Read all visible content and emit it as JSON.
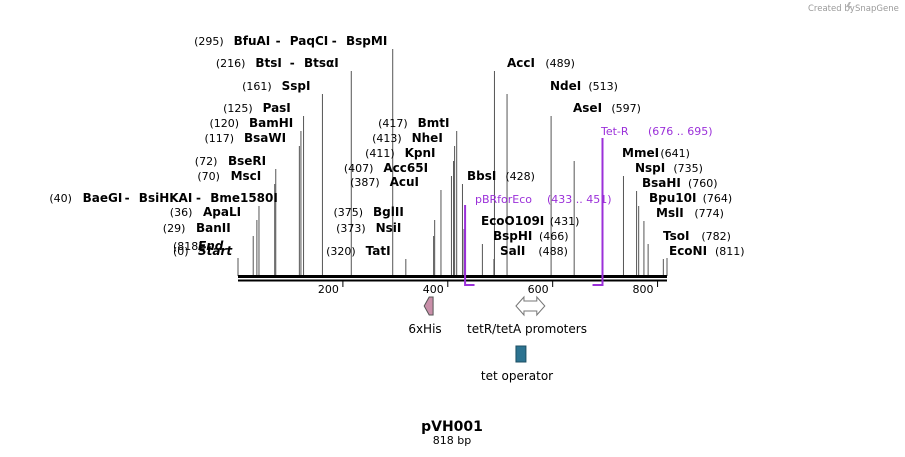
{
  "brand": {
    "created_by": "Created by",
    "name": "SnapGene"
  },
  "plasmid": {
    "name": "pVH001",
    "length_label": "818 bp"
  },
  "axis": {
    "start": 0,
    "end": 818,
    "ticks": [
      200,
      400,
      600,
      800
    ]
  },
  "enzymes": [
    {
      "names": [
        "Start"
      ],
      "pos_label": "(0)",
      "pos": 0,
      "italic": true
    },
    {
      "names": [
        "BanII"
      ],
      "pos_label": "(29)",
      "pos": 29
    },
    {
      "names": [
        "ApaLI"
      ],
      "pos_label": "(36)",
      "pos": 36
    },
    {
      "names": [
        "BaeGI",
        "BsiHKAI",
        "Bme1580I"
      ],
      "pos_label": "(40)",
      "pos": 40
    },
    {
      "names": [
        "MscI"
      ],
      "pos_label": "(70)",
      "pos": 70
    },
    {
      "names": [
        "BseRI"
      ],
      "pos_label": "(72)",
      "pos": 72
    },
    {
      "names": [
        "BsaWI"
      ],
      "pos_label": "(117)",
      "pos": 117
    },
    {
      "names": [
        "BamHI"
      ],
      "pos_label": "(120)",
      "pos": 120
    },
    {
      "names": [
        "PasI"
      ],
      "pos_label": "(125)",
      "pos": 125
    },
    {
      "names": [
        "SspI"
      ],
      "pos_label": "(161)",
      "pos": 161
    },
    {
      "names": [
        "BtsI",
        "BtsαI"
      ],
      "pos_label": "(216)",
      "pos": 216
    },
    {
      "names": [
        "BfuAI",
        "PaqCI",
        "BspMI"
      ],
      "pos_label": "(295)",
      "pos": 295
    },
    {
      "names": [
        "TatI"
      ],
      "pos_label": "(320)",
      "pos": 320
    },
    {
      "names": [
        "NsiI"
      ],
      "pos_label": "(373)",
      "pos": 373
    },
    {
      "names": [
        "BglII"
      ],
      "pos_label": "(375)",
      "pos": 375
    },
    {
      "names": [
        "AcuI"
      ],
      "pos_label": "(387)",
      "pos": 387
    },
    {
      "names": [
        "Acc65I"
      ],
      "pos_label": "(407)",
      "pos": 407
    },
    {
      "names": [
        "KpnI"
      ],
      "pos_label": "(411)",
      "pos": 411
    },
    {
      "names": [
        "NheI"
      ],
      "pos_label": "(413)",
      "pos": 413
    },
    {
      "names": [
        "BmtI"
      ],
      "pos_label": "(417)",
      "pos": 417
    },
    {
      "names": [
        "BbsI"
      ],
      "pos_label": "(428)",
      "pos": 428
    },
    {
      "names": [
        "EcoO109I"
      ],
      "pos_label": "(431)",
      "pos": 431
    },
    {
      "names": [
        "BspHI"
      ],
      "pos_label": "(466)",
      "pos": 466
    },
    {
      "names": [
        "SalI"
      ],
      "pos_label": "(488)",
      "pos": 488
    },
    {
      "names": [
        "AccI"
      ],
      "pos_label": "(489)",
      "pos": 489
    },
    {
      "names": [
        "NdeI"
      ],
      "pos_label": "(513)",
      "pos": 513
    },
    {
      "names": [
        "AseI"
      ],
      "pos_label": "(597)",
      "pos": 597
    },
    {
      "names": [
        "MmeI"
      ],
      "pos_label": "(641)",
      "pos": 641
    },
    {
      "names": [
        "NspI"
      ],
      "pos_label": "(735)",
      "pos": 735
    },
    {
      "names": [
        "BsaHI"
      ],
      "pos_label": "(760)",
      "pos": 760
    },
    {
      "names": [
        "Bpu10I"
      ],
      "pos_label": "(764)",
      "pos": 764
    },
    {
      "names": [
        "MslI"
      ],
      "pos_label": "(774)",
      "pos": 774
    },
    {
      "names": [
        "TsoI"
      ],
      "pos_label": "(782)",
      "pos": 782
    },
    {
      "names": [
        "EcoNI"
      ],
      "pos_label": "(811)",
      "pos": 811
    },
    {
      "names": [
        "End"
      ],
      "pos_label": "(818)",
      "pos": 818,
      "italic": true
    }
  ],
  "primers": [
    {
      "name": "pBRforEco",
      "range_label": "(433 .. 451)",
      "start": 433,
      "end": 451,
      "strand": "forward"
    },
    {
      "name": "Tet-R",
      "range_label": "(676 .. 695)",
      "start": 676,
      "end": 695,
      "strand": "reverse"
    }
  ],
  "features": [
    {
      "name": "6xHis",
      "start": 355,
      "end": 372,
      "shape": "arrow-left",
      "color": "#c98fa9"
    },
    {
      "name": "tetR/tetA promoters",
      "start": 530,
      "end": 585,
      "shape": "double-arrow",
      "color": "#ffffff"
    },
    {
      "name": "tet operator",
      "start": 530,
      "end": 549,
      "shape": "box",
      "color": "#2c7390"
    }
  ],
  "colors": {
    "primer": "#9b30d9",
    "backbone": "#000000"
  }
}
